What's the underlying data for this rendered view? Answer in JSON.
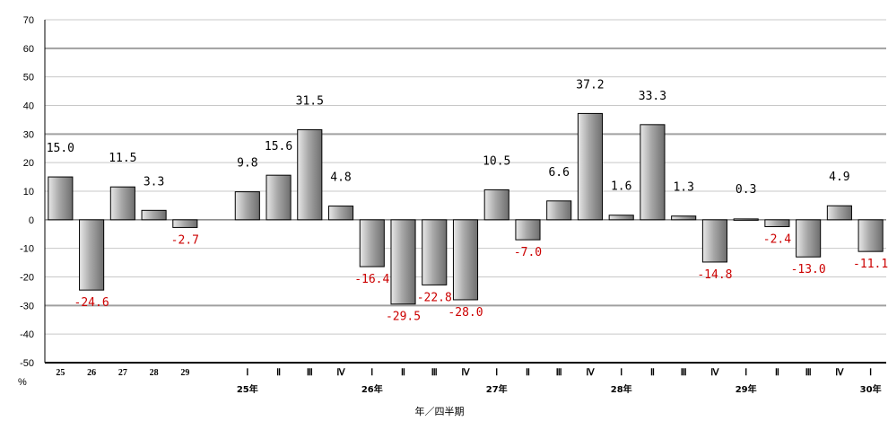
{
  "chart_data": {
    "type": "bar",
    "ylabel": "%",
    "xlabel": "年／四半期",
    "ylim": [
      -50,
      70
    ],
    "yticks": [
      70,
      60,
      50,
      40,
      30,
      20,
      10,
      0,
      -10,
      -20,
      -30,
      -40,
      -50
    ],
    "grid": true,
    "legend": "none",
    "colors": {
      "bar": "#a8a8a8",
      "bar_edge": "#000000",
      "grid_major": "#a0a0a0",
      "positive_label": "#000000",
      "negative_label": "#cc0000"
    },
    "categories": [
      "25",
      "26",
      "27",
      "28",
      "29",
      "",
      "Ⅰ",
      "Ⅱ",
      "Ⅲ",
      "Ⅳ",
      "Ⅰ",
      "Ⅱ",
      "Ⅲ",
      "Ⅳ",
      "Ⅰ",
      "Ⅱ",
      "Ⅲ",
      "Ⅳ",
      "Ⅰ",
      "Ⅱ",
      "Ⅲ",
      "Ⅳ",
      "Ⅰ",
      "Ⅱ",
      "Ⅲ",
      "Ⅳ",
      "Ⅰ"
    ],
    "values": [
      15.0,
      -24.6,
      11.5,
      3.3,
      -2.7,
      null,
      9.8,
      15.6,
      31.5,
      4.8,
      -16.4,
      -29.5,
      -22.8,
      -28.0,
      10.5,
      -7.0,
      6.6,
      37.2,
      1.6,
      33.3,
      1.3,
      -14.8,
      0.3,
      -2.4,
      -13.0,
      4.9,
      -11.1
    ],
    "value_labels": [
      "15.0",
      "-24.6",
      "11.5",
      "3.3",
      "-2.7",
      "",
      "9.8",
      "15.6",
      "31.5",
      "4.8",
      "-16.4",
      "-29.5",
      "-22.8",
      "-28.0",
      "10.5",
      "-7.0",
      "6.6",
      "37.2",
      "1.6",
      "33.3",
      "1.3",
      "-14.8",
      "0.3",
      "-2.4",
      "-13.0",
      "4.9",
      "-11.1"
    ],
    "year_labels": [
      {
        "index": 6,
        "label": "25年"
      },
      {
        "index": 10,
        "label": "26年"
      },
      {
        "index": 14,
        "label": "27年"
      },
      {
        "index": 18,
        "label": "28年"
      },
      {
        "index": 22,
        "label": "29年"
      },
      {
        "index": 26,
        "label": "30年"
      }
    ]
  }
}
